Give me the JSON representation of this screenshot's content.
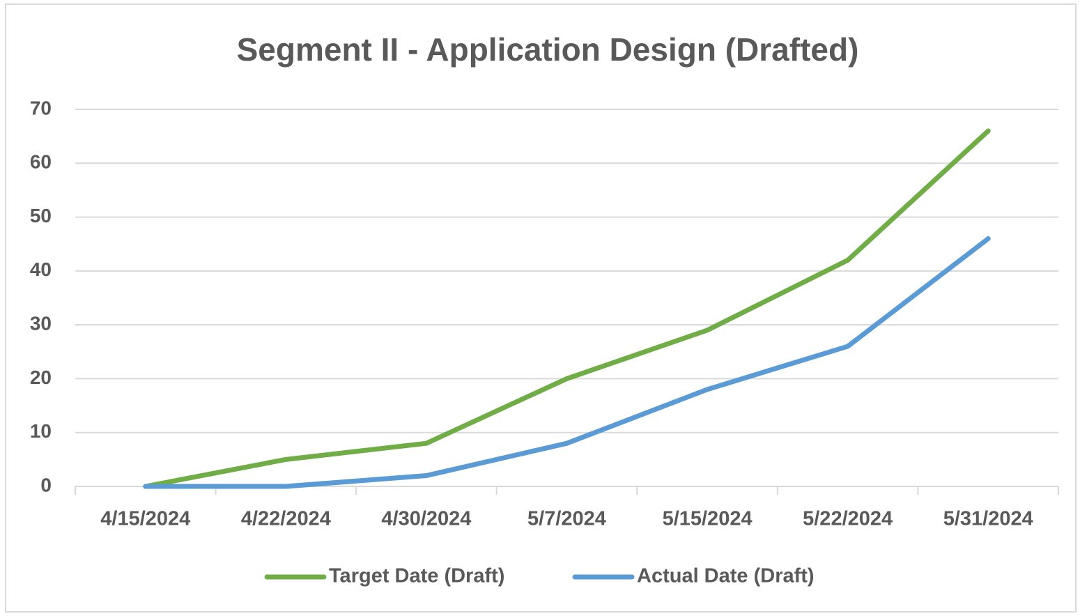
{
  "chart_data": {
    "type": "line",
    "title": "Segment  II - Application Design (Drafted)",
    "categories": [
      "4/15/2024",
      "4/22/2024",
      "4/30/2024",
      "5/7/2024",
      "5/15/2024",
      "5/22/2024",
      "5/31/2024"
    ],
    "series": [
      {
        "name": "Target Date (Draft)",
        "color": "#70ad47",
        "values": [
          0,
          5,
          8,
          20,
          29,
          42,
          66
        ]
      },
      {
        "name": "Actual Date (Draft)",
        "color": "#5b9bd5",
        "values": [
          0,
          0,
          2,
          8,
          18,
          26,
          46
        ]
      }
    ],
    "ylim": [
      0,
      70
    ],
    "yticks": [
      0,
      10,
      20,
      30,
      40,
      50,
      60,
      70
    ],
    "grid": true,
    "legend": "bottom"
  }
}
